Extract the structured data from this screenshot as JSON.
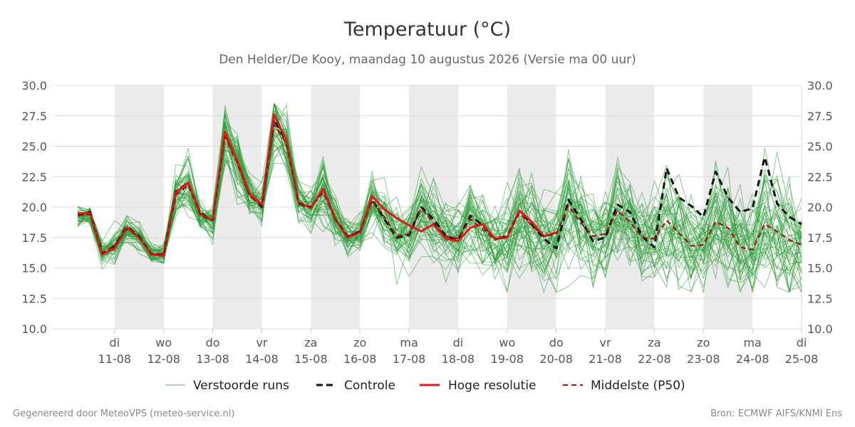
{
  "chart_data": {
    "type": "line",
    "title": "Temperatuur (°C)",
    "subtitle": "Den Helder/De Kooy, maandag 10 augustus 2026 (Versie ma 00 uur)",
    "ylim": [
      10,
      30
    ],
    "y_ticks": [
      "10.0",
      "12.5",
      "15.0",
      "17.5",
      "20.0",
      "22.5",
      "25.0",
      "27.5",
      "30.0"
    ],
    "x_range_days": [
      0,
      15
    ],
    "x_ticks": [
      {
        "day": 1,
        "dow": "di",
        "date": "11-08"
      },
      {
        "day": 2,
        "dow": "wo",
        "date": "12-08"
      },
      {
        "day": 3,
        "dow": "do",
        "date": "13-08"
      },
      {
        "day": 4,
        "dow": "vr",
        "date": "14-08"
      },
      {
        "day": 5,
        "dow": "za",
        "date": "15-08"
      },
      {
        "day": 6,
        "dow": "zo",
        "date": "16-08"
      },
      {
        "day": 7,
        "dow": "ma",
        "date": "17-08"
      },
      {
        "day": 8,
        "dow": "di",
        "date": "18-08"
      },
      {
        "day": 9,
        "dow": "wo",
        "date": "19-08"
      },
      {
        "day": 10,
        "dow": "do",
        "date": "20-08"
      },
      {
        "day": 11,
        "dow": "vr",
        "date": "21-08"
      },
      {
        "day": 12,
        "dow": "za",
        "date": "22-08"
      },
      {
        "day": 13,
        "dow": "zo",
        "date": "23-08"
      },
      {
        "day": 14,
        "dow": "ma",
        "date": "24-08"
      },
      {
        "day": 15,
        "dow": "di",
        "date": "25-08"
      }
    ],
    "weekday_bands": [
      [
        1,
        2
      ],
      [
        3,
        4
      ],
      [
        5,
        6
      ],
      [
        7,
        8
      ],
      [
        9,
        10
      ],
      [
        11,
        12
      ],
      [
        13,
        14
      ]
    ],
    "grid": true,
    "legend_position": "bottom",
    "series": [
      {
        "name": "Controle",
        "color": "#111111",
        "style": "dashed",
        "x": [
          0.25,
          0.5,
          0.75,
          1.0,
          1.25,
          1.5,
          1.75,
          2.0,
          2.25,
          2.5,
          2.75,
          3.0,
          3.25,
          3.5,
          3.75,
          4.0,
          4.25,
          4.5,
          4.75,
          5.0,
          5.25,
          5.5,
          5.75,
          6.0,
          6.25,
          6.5,
          6.75,
          7.0,
          7.25,
          7.5,
          7.75,
          8.0,
          8.25,
          8.5,
          8.75,
          9.0,
          9.25,
          9.5,
          9.75,
          10.0,
          10.25,
          10.5,
          10.75,
          11.0,
          11.25,
          11.5,
          11.75,
          12.0,
          12.25,
          12.5,
          12.75,
          13.0,
          13.25,
          13.5,
          13.75,
          14.0,
          14.25,
          14.5,
          14.75,
          15.0
        ],
        "values": [
          19.3,
          19.6,
          16.2,
          16.8,
          18.4,
          17.6,
          16.1,
          16.1,
          21.3,
          22.0,
          19.5,
          18.9,
          26.1,
          23.8,
          21.0,
          20.0,
          27.2,
          25.4,
          20.3,
          19.9,
          21.5,
          19.0,
          17.6,
          18.0,
          20.6,
          19.0,
          17.5,
          17.7,
          20.0,
          19.0,
          17.6,
          17.3,
          19.3,
          18.5,
          17.4,
          17.6,
          19.7,
          18.6,
          17.4,
          16.6,
          20.6,
          19.0,
          17.2,
          17.5,
          20.2,
          19.6,
          17.6,
          16.7,
          23.2,
          20.8,
          20.1,
          19.2,
          22.9,
          20.8,
          19.6,
          19.9,
          24.1,
          20.3,
          19.2,
          18.6
        ]
      },
      {
        "name": "Hoge resolutie",
        "color": "#e01a1a",
        "style": "solid",
        "x": [
          0.25,
          0.5,
          0.75,
          1.0,
          1.25,
          1.5,
          1.75,
          2.0,
          2.25,
          2.5,
          2.75,
          3.0,
          3.25,
          3.5,
          3.75,
          4.0,
          4.25,
          4.5,
          4.75,
          5.0,
          5.25,
          5.5,
          5.75,
          6.0,
          6.25,
          6.5,
          6.75,
          7.0,
          7.25,
          7.5,
          7.75,
          8.0,
          8.25,
          8.5,
          8.75,
          9.0,
          9.25,
          9.5,
          9.75,
          10.0
        ],
        "values": [
          19.5,
          19.5,
          16.1,
          16.6,
          18.3,
          17.5,
          16.1,
          16.0,
          21.2,
          22.0,
          19.4,
          18.9,
          26.2,
          23.8,
          21.1,
          20.2,
          27.6,
          25.5,
          20.4,
          19.9,
          21.5,
          19.0,
          17.5,
          17.9,
          20.9,
          19.8,
          19.1,
          18.5,
          18.0,
          18.6,
          17.4,
          17.2,
          18.3,
          18.6,
          17.4,
          17.5,
          19.7,
          18.8,
          17.6,
          17.9
        ]
      },
      {
        "name": "Middelste (P50)",
        "color": "#a51111",
        "style": "dashed",
        "x": [
          0.25,
          0.5,
          0.75,
          1.0,
          1.25,
          1.5,
          1.75,
          2.0,
          2.25,
          2.5,
          2.75,
          3.0,
          3.25,
          3.5,
          3.75,
          4.0,
          4.25,
          4.5,
          4.75,
          5.0,
          5.25,
          5.5,
          5.75,
          6.0,
          6.25,
          6.5,
          6.75,
          7.0,
          7.25,
          7.5,
          7.75,
          8.0,
          8.25,
          8.5,
          8.75,
          9.0,
          9.25,
          9.5,
          9.75,
          10.0,
          10.25,
          10.5,
          10.75,
          11.0,
          11.25,
          11.5,
          11.75,
          12.0,
          12.25,
          12.5,
          12.75,
          13.0,
          13.25,
          13.5,
          13.75,
          14.0,
          14.25,
          14.5,
          14.75,
          15.0
        ],
        "values": [
          19.3,
          19.4,
          16.2,
          16.8,
          18.2,
          17.5,
          16.2,
          16.1,
          21.0,
          21.8,
          19.3,
          18.9,
          25.8,
          23.6,
          20.9,
          20.1,
          26.8,
          25.2,
          20.4,
          20.0,
          21.2,
          19.0,
          17.6,
          18.0,
          20.5,
          19.2,
          17.6,
          17.8,
          19.9,
          18.7,
          17.6,
          17.4,
          19.0,
          18.2,
          17.3,
          17.6,
          19.5,
          18.5,
          17.6,
          17.8,
          20.1,
          18.7,
          17.6,
          17.8,
          19.7,
          18.8,
          17.5,
          17.4,
          18.9,
          17.9,
          16.8,
          16.9,
          18.8,
          18.3,
          16.7,
          16.5,
          18.6,
          18.0,
          17.3,
          16.9
        ]
      }
    ],
    "ensemble": {
      "name": "Verstoorde runs",
      "color": "#2e9e3a",
      "member_count": 50,
      "spread": [
        0.5,
        0.5,
        0.6,
        0.7,
        0.6,
        0.6,
        0.5,
        0.5,
        1.0,
        1.3,
        0.8,
        0.9,
        1.4,
        1.6,
        1.0,
        0.9,
        1.6,
        1.4,
        1.2,
        1.0,
        1.5,
        1.0,
        0.9,
        0.9,
        1.3,
        1.5,
        1.4,
        1.4,
        1.8,
        1.9,
        1.6,
        1.7,
        2.0,
        2.0,
        1.9,
        1.9,
        2.2,
        2.2,
        2.1,
        2.1,
        2.4,
        2.4,
        2.3,
        2.2,
        2.4,
        2.3,
        2.3,
        2.2,
        2.5,
        2.5,
        2.4,
        2.4,
        2.6,
        2.6,
        2.5,
        2.5,
        2.6,
        2.6,
        2.6,
        2.6
      ]
    },
    "legend": [
      "Verstoorde runs",
      "Controle",
      "Hoge resolutie",
      "Middelste (P50)"
    ]
  },
  "footer": {
    "left": "Gegenereerd door MeteoVPS (meteo-service.nl)",
    "right": "Bron: ECMWF AIFS/KNMI Ens"
  }
}
